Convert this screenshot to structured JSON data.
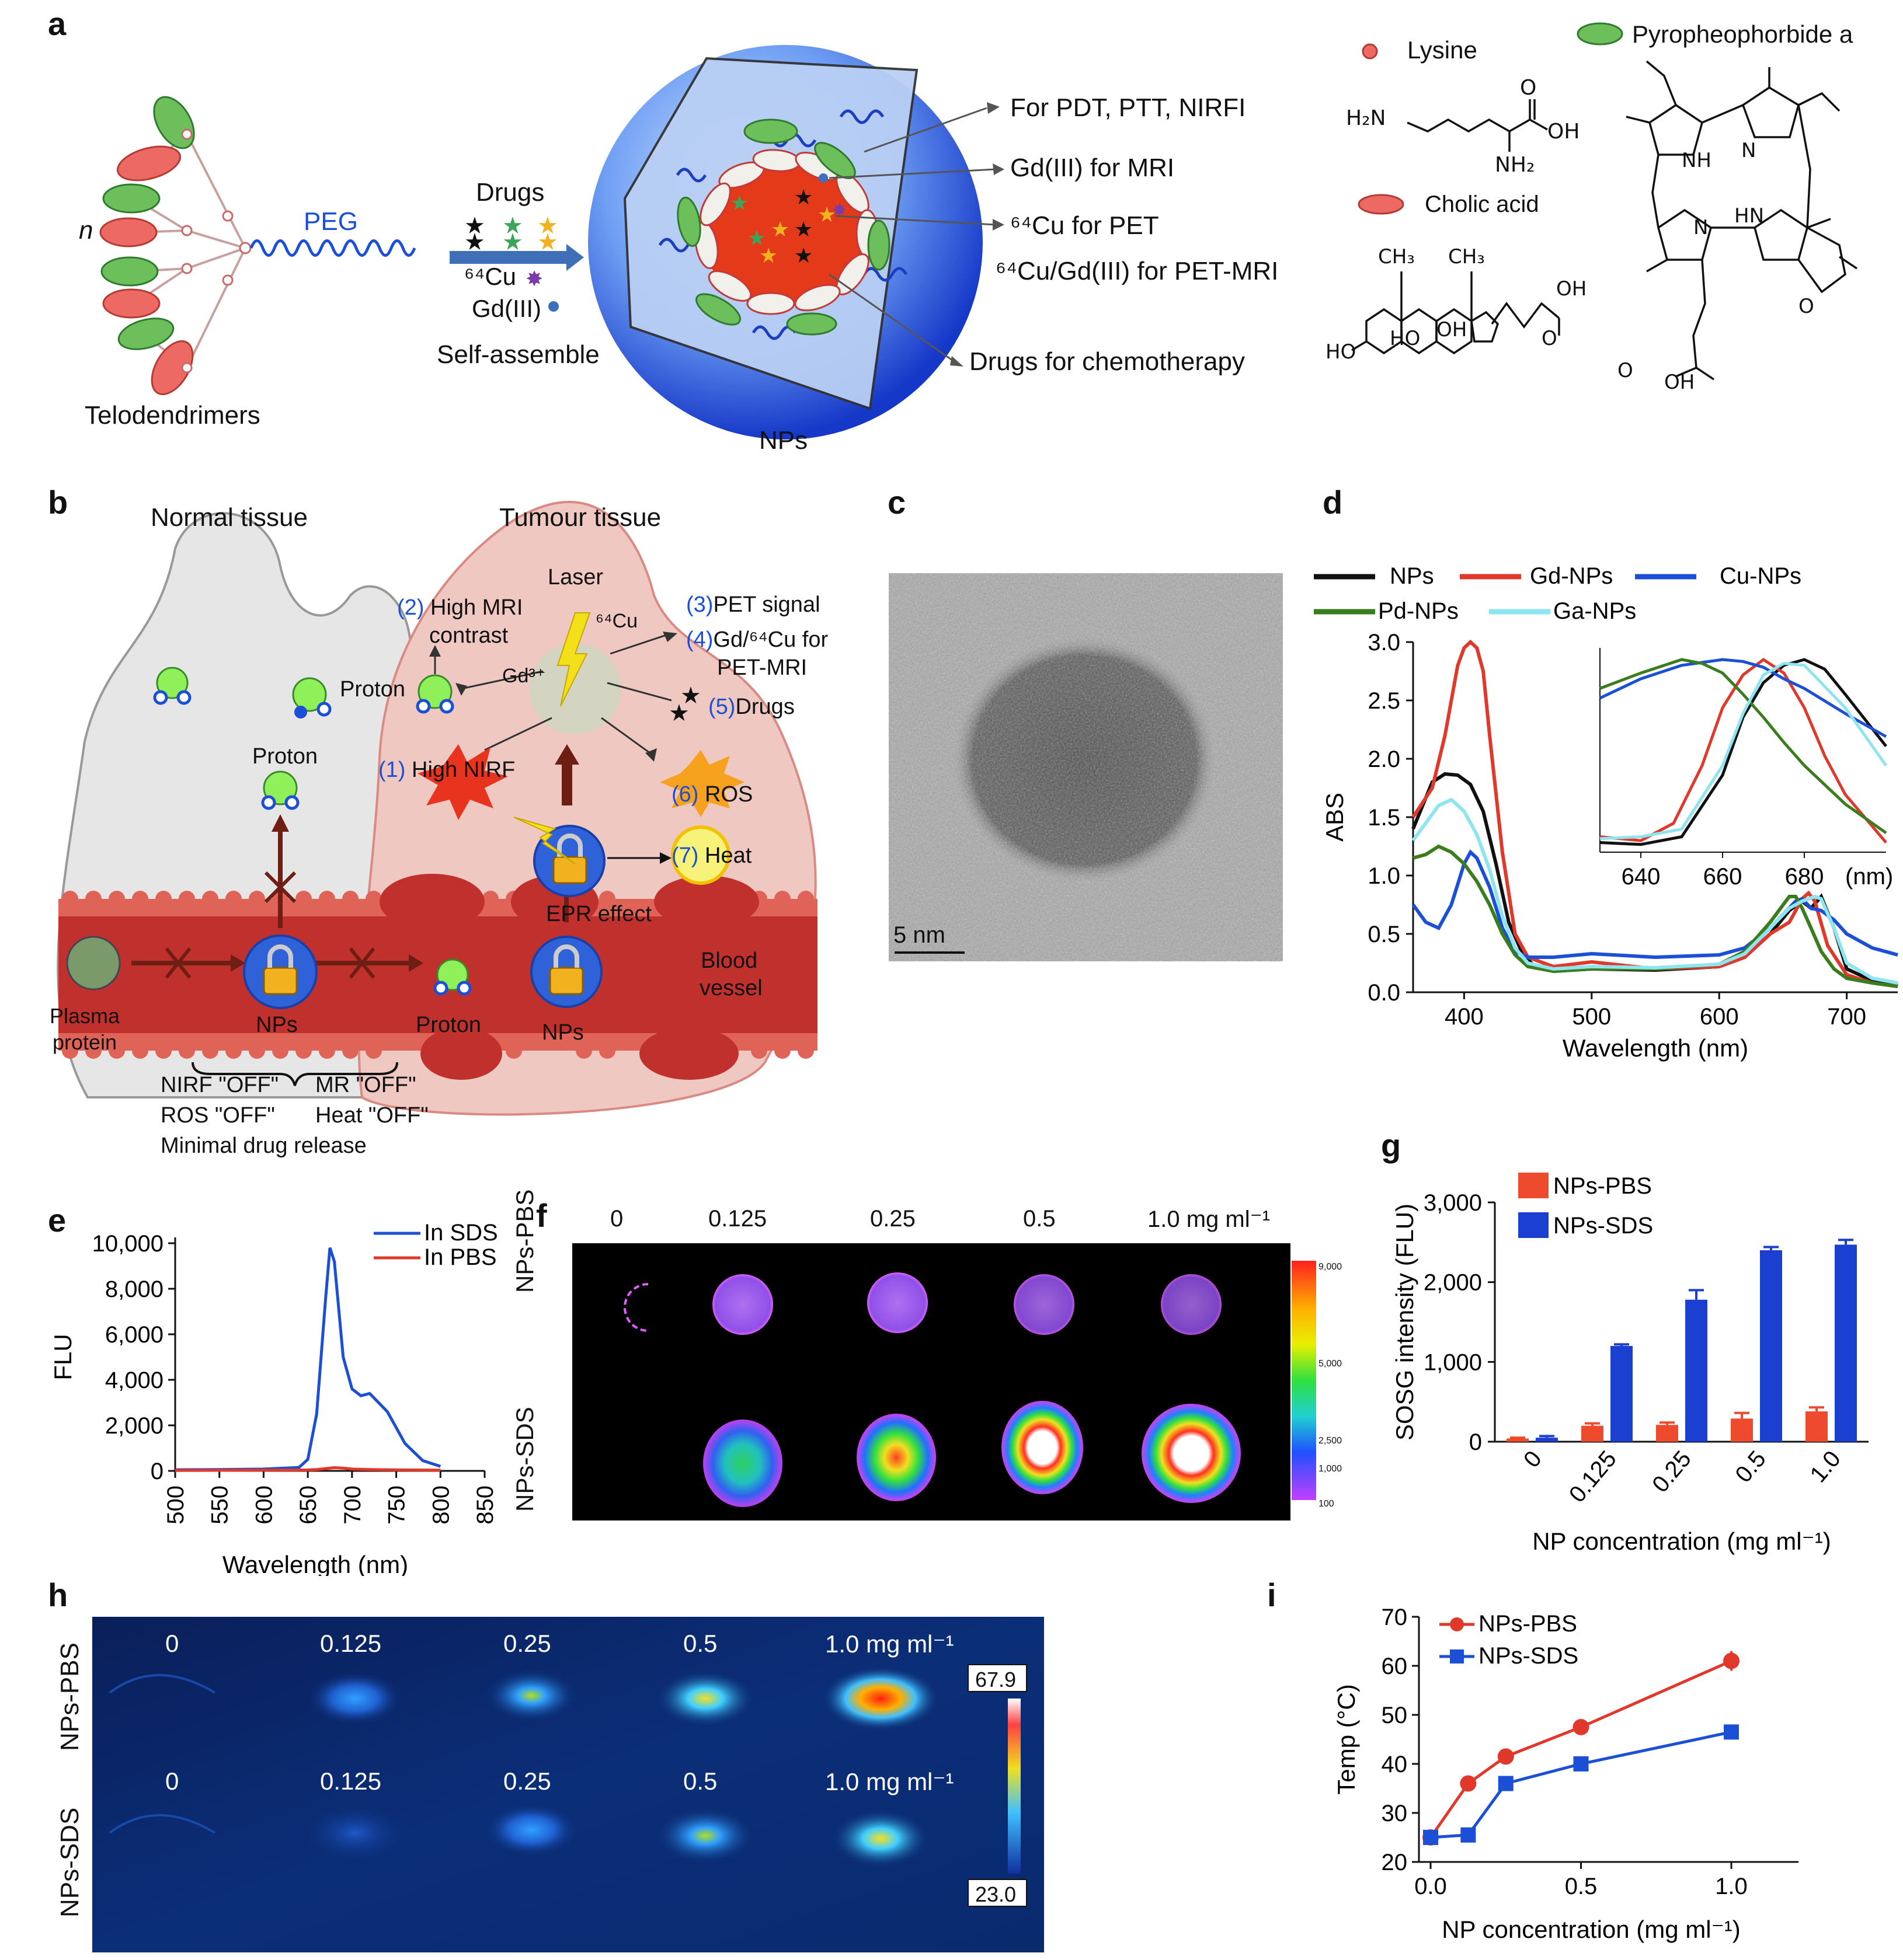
{
  "panel_labels": {
    "a": "a",
    "b": "b",
    "c": "c",
    "d": "d",
    "e": "e",
    "f": "f",
    "g": "g",
    "h": "h",
    "i": "i"
  },
  "panel_a": {
    "n_label": "n",
    "peg_label": "PEG",
    "telodendrimers": "Telodendrimers",
    "drugs": "Drugs",
    "cu64": "⁶⁴Cu",
    "gd": "Gd(III)",
    "self_assemble": "Self-assemble",
    "nps": "NPs",
    "annotations": [
      "For PDT, PTT, NIRFI",
      "Gd(III) for MRI",
      "⁶⁴Cu for PET",
      "⁶⁴Cu/Gd(III) for PET-MRI",
      "Drugs for chemotherapy"
    ],
    "legend_lysine": "Lysine",
    "legend_cholic": "Cholic acid",
    "legend_pyro": "Pyropheophorbide a",
    "chem_lysine": {
      "h2n": "H₂N",
      "o": "O",
      "oh": "OH",
      "nh2": "NH₂"
    },
    "chem_cholic": {
      "ch3a": "CH₃",
      "ch3b": "CH₃",
      "oh": "OH",
      "ho1": "HO",
      "ho2": "HO",
      "oh2": "OH",
      "o": "O"
    },
    "chem_pyro": {
      "nh": "NH",
      "n1": "N",
      "n2": "N",
      "hn": "HN",
      "o1": "O",
      "o2": "O",
      "oh": "OH"
    }
  },
  "panel_b": {
    "normal_tissue": "Normal tissue",
    "tumour_tissue": "Tumour tissue",
    "laser": "Laser",
    "cu_label": "⁶⁴Cu",
    "gd_label": "Gd³⁺",
    "proton": "Proton",
    "proton2": "Proton",
    "proton3": "Proton",
    "items": [
      {
        "num": "(1)",
        "text": "High NIRF"
      },
      {
        "num": "(2)",
        "text": "High MRI"
      },
      {
        "num": "",
        "text": "contrast"
      },
      {
        "num": "(3)",
        "text": "PET signal"
      },
      {
        "num": "(4)",
        "text": "Gd/⁶⁴Cu for"
      },
      {
        "num": "",
        "text": "PET-MRI"
      },
      {
        "num": "(5)",
        "text": "Drugs"
      },
      {
        "num": "(6)",
        "text": "ROS"
      },
      {
        "num": "(7)",
        "text": "Heat"
      }
    ],
    "epr": "EPR effect",
    "blood_vessel_1": "Blood",
    "blood_vessel_2": "vessel",
    "plasma_1": "Plasma",
    "plasma_2": "protein",
    "nps_1": "NPs",
    "nps_2": "NPs",
    "off_1": "NIRF \"OFF\"",
    "off_2": "MR \"OFF\"",
    "off_3": "ROS \"OFF\"",
    "off_4": "Heat \"OFF\"",
    "off_5": "Minimal drug release"
  },
  "panel_c": {
    "scale": "5 nm"
  },
  "panel_d": {
    "chart_data": {
      "type": "line",
      "xlabel": "Wavelength (nm)",
      "ylabel": "ABS",
      "xlim": [
        360,
        740
      ],
      "ylim": [
        0,
        3.0
      ],
      "xticks": [
        "400",
        "500",
        "600",
        "700"
      ],
      "yticks": [
        "0.0",
        "0.5",
        "1.0",
        "1.5",
        "2.0",
        "2.5",
        "3.0"
      ],
      "legend": [
        "NPs",
        "Gd-NPs",
        "Cu-NPs",
        "Pd-NPs",
        "Ga-NPs"
      ],
      "series": [
        {
          "name": "NPs",
          "color": "#111111",
          "x": [
            360,
            375,
            385,
            395,
            405,
            415,
            425,
            435,
            445,
            455,
            470,
            500,
            550,
            600,
            620,
            640,
            655,
            665,
            672,
            680,
            690,
            700,
            720,
            740
          ],
          "y": [
            1.4,
            1.8,
            1.87,
            1.86,
            1.78,
            1.55,
            1.1,
            0.6,
            0.35,
            0.22,
            0.18,
            0.2,
            0.19,
            0.22,
            0.3,
            0.5,
            0.7,
            0.78,
            0.72,
            0.82,
            0.55,
            0.2,
            0.1,
            0.06
          ]
        },
        {
          "name": "Gd-NPs",
          "color": "#e0392b",
          "x": [
            360,
            375,
            385,
            395,
            400,
            405,
            410,
            415,
            420,
            430,
            440,
            450,
            470,
            500,
            550,
            600,
            620,
            640,
            655,
            665,
            670,
            675,
            685,
            700,
            720,
            740
          ],
          "y": [
            1.5,
            1.75,
            2.2,
            2.8,
            2.95,
            3.0,
            2.95,
            2.75,
            2.2,
            1.2,
            0.5,
            0.3,
            0.22,
            0.26,
            0.2,
            0.22,
            0.3,
            0.5,
            0.6,
            0.8,
            0.85,
            0.78,
            0.4,
            0.15,
            0.08,
            0.05
          ]
        },
        {
          "name": "Cu-NPs",
          "color": "#1a4fd6",
          "x": [
            360,
            370,
            380,
            390,
            400,
            405,
            410,
            420,
            430,
            440,
            450,
            470,
            500,
            550,
            600,
            620,
            640,
            660,
            665,
            672,
            680,
            690,
            700,
            720,
            740
          ],
          "y": [
            0.75,
            0.6,
            0.55,
            0.75,
            1.1,
            1.2,
            1.15,
            0.9,
            0.55,
            0.35,
            0.3,
            0.3,
            0.33,
            0.3,
            0.32,
            0.38,
            0.55,
            0.78,
            0.8,
            0.72,
            0.7,
            0.62,
            0.5,
            0.38,
            0.32
          ]
        },
        {
          "name": "Pd-NPs",
          "color": "#3a7d1c",
          "x": [
            360,
            370,
            380,
            390,
            400,
            410,
            420,
            430,
            440,
            450,
            470,
            500,
            550,
            600,
            620,
            640,
            655,
            660,
            665,
            672,
            680,
            690,
            700,
            720,
            740
          ],
          "y": [
            1.15,
            1.18,
            1.25,
            1.2,
            1.1,
            0.95,
            0.75,
            0.5,
            0.32,
            0.22,
            0.18,
            0.2,
            0.2,
            0.24,
            0.35,
            0.6,
            0.82,
            0.82,
            0.72,
            0.55,
            0.35,
            0.2,
            0.12,
            0.08,
            0.05
          ]
        },
        {
          "name": "Ga-NPs",
          "color": "#8ee4ef",
          "x": [
            360,
            370,
            380,
            390,
            400,
            410,
            420,
            430,
            440,
            450,
            470,
            500,
            550,
            600,
            620,
            640,
            655,
            665,
            675,
            680,
            690,
            700,
            720,
            740
          ],
          "y": [
            1.3,
            1.45,
            1.6,
            1.65,
            1.55,
            1.35,
            1.05,
            0.65,
            0.38,
            0.25,
            0.2,
            0.22,
            0.21,
            0.24,
            0.33,
            0.55,
            0.72,
            0.78,
            0.82,
            0.8,
            0.55,
            0.25,
            0.12,
            0.08
          ]
        }
      ],
      "inset": {
        "xticks": [
          "640",
          "660",
          "680"
        ],
        "xunit": "(nm)",
        "xlim": [
          630,
          700
        ],
        "series": [
          {
            "name": "NPs",
            "color": "#111111",
            "x": [
              630,
              640,
              650,
              660,
              665,
              670,
              675,
              680,
              685,
              690,
              700
            ],
            "y": [
              0.05,
              0.04,
              0.08,
              0.4,
              0.7,
              0.88,
              0.97,
              1.0,
              0.95,
              0.82,
              0.55
            ]
          },
          {
            "name": "Gd-NPs",
            "color": "#e0392b",
            "x": [
              630,
              640,
              648,
              655,
              660,
              665,
              670,
              675,
              680,
              685,
              690,
              700
            ],
            "y": [
              0.08,
              0.06,
              0.15,
              0.45,
              0.75,
              0.92,
              1.0,
              0.93,
              0.75,
              0.5,
              0.3,
              0.05
            ]
          },
          {
            "name": "Cu-NPs",
            "color": "#1a4fd6",
            "x": [
              630,
              640,
              650,
              660,
              665,
              670,
              675,
              680,
              690,
              700
            ],
            "y": [
              0.8,
              0.9,
              0.97,
              1.0,
              0.99,
              0.96,
              0.9,
              0.85,
              0.72,
              0.6
            ]
          },
          {
            "name": "Pd-NPs",
            "color": "#3a7d1c",
            "x": [
              630,
              640,
              650,
              655,
              660,
              665,
              670,
              675,
              680,
              690,
              700
            ],
            "y": [
              0.85,
              0.93,
              1.0,
              0.98,
              0.93,
              0.82,
              0.7,
              0.57,
              0.45,
              0.25,
              0.1
            ]
          },
          {
            "name": "Ga-NPs",
            "color": "#8ee4ef",
            "x": [
              630,
              640,
              650,
              660,
              665,
              670,
              675,
              680,
              690,
              700
            ],
            "y": [
              0.07,
              0.08,
              0.12,
              0.45,
              0.72,
              0.92,
              0.98,
              0.97,
              0.75,
              0.45
            ]
          }
        ]
      }
    }
  },
  "panel_e": {
    "chart_data": {
      "type": "line",
      "xlabel": "Wavelength (nm)",
      "ylabel": "FLU",
      "xlim": [
        500,
        850
      ],
      "ylim": [
        0,
        10000
      ],
      "xticks": [
        "500",
        "550",
        "600",
        "650",
        "700",
        "750",
        "800",
        "850"
      ],
      "yticks": [
        "0",
        "2,000",
        "4,000",
        "6,000",
        "8,000",
        "10,000"
      ],
      "series": [
        {
          "name": "In SDS",
          "color": "#1a4fd6",
          "x": [
            500,
            550,
            600,
            640,
            650,
            660,
            670,
            675,
            680,
            690,
            700,
            710,
            720,
            740,
            760,
            780,
            800
          ],
          "y": [
            50,
            60,
            80,
            150,
            500,
            2500,
            7500,
            9800,
            9200,
            5000,
            3600,
            3300,
            3400,
            2600,
            1200,
            450,
            200
          ]
        },
        {
          "name": "In PBS",
          "color": "#e0392b",
          "x": [
            500,
            600,
            650,
            660,
            670,
            680,
            690,
            700,
            720,
            750,
            800
          ],
          "y": [
            20,
            30,
            40,
            60,
            100,
            140,
            120,
            80,
            60,
            40,
            30
          ]
        }
      ]
    }
  },
  "panel_f": {
    "cols": [
      "0",
      "0.125",
      "0.25",
      "0.5",
      "1.0 mg ml⁻¹"
    ],
    "rows": [
      "NPs-PBS",
      "NPs-SDS"
    ],
    "scale_labels": [
      "9,000",
      "5,000",
      "2,500",
      "1,000",
      "100"
    ]
  },
  "panel_g": {
    "chart_data": {
      "type": "bar",
      "xlabel": "NP concentration (mg ml⁻¹)",
      "ylabel": "SOSG intensity (FLU)",
      "ylim": [
        0,
        3000
      ],
      "yticks": [
        "0",
        "1,000",
        "2,000",
        "3,000"
      ],
      "categories": [
        "0",
        "0.125",
        "0.25",
        "0.5",
        "1.0"
      ],
      "series": [
        {
          "name": "NPs-PBS",
          "color": "#ee4a2e",
          "values": [
            40,
            200,
            210,
            290,
            380
          ],
          "errors": [
            10,
            30,
            30,
            70,
            50
          ]
        },
        {
          "name": "NPs-SDS",
          "color": "#1a3fd1",
          "values": [
            50,
            1200,
            1780,
            2400,
            2470
          ],
          "errors": [
            20,
            20,
            120,
            40,
            60
          ]
        }
      ]
    }
  },
  "panel_h": {
    "cols": [
      "0",
      "0.125",
      "0.25",
      "0.5",
      "1.0 mg ml⁻¹"
    ],
    "rows": [
      "NPs-PBS",
      "NPs-SDS"
    ],
    "scale_max": "67.9",
    "scale_min": "23.0"
  },
  "panel_i": {
    "chart_data": {
      "type": "line",
      "xlabel": "NP concentration (mg ml⁻¹)",
      "ylabel": "Temp (°C)",
      "xlim": [
        0,
        1.0
      ],
      "ylim": [
        20,
        70
      ],
      "xticks": [
        "0.0",
        "0.5",
        "1.0"
      ],
      "yticks": [
        "20",
        "30",
        "40",
        "50",
        "60",
        "70"
      ],
      "series": [
        {
          "name": "NPs-PBS",
          "color": "#e0392b",
          "marker": "circle",
          "x": [
            0,
            0.125,
            0.25,
            0.5,
            1.0
          ],
          "y": [
            25,
            36,
            41.5,
            47.5,
            61
          ]
        },
        {
          "name": "NPs-SDS",
          "color": "#1a4fd6",
          "marker": "square",
          "x": [
            0,
            0.125,
            0.25,
            0.5,
            1.0
          ],
          "y": [
            25,
            25.5,
            36,
            40,
            46.5
          ]
        }
      ]
    }
  }
}
